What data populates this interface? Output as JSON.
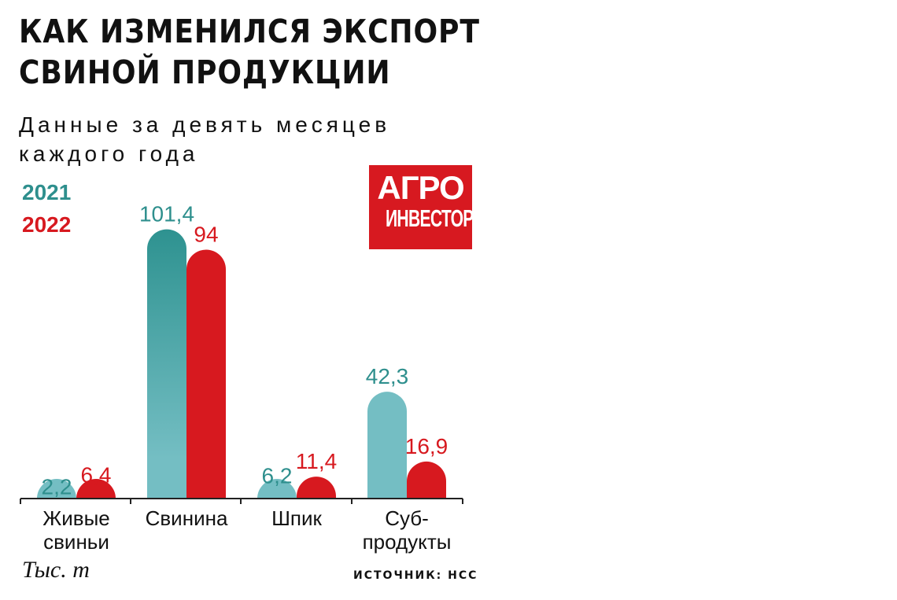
{
  "header": {
    "title_lines": [
      "КАК ИЗМЕНИЛСЯ ЭКСПОРТ",
      "СВИНОЙ ПРОДУКЦИИ"
    ],
    "subtitle_lines": [
      "Данные за девять месяцев",
      "каждого года"
    ]
  },
  "logo": {
    "line1": "АГРО",
    "line2": "ИНВЕСТОР",
    "color": "#d71920"
  },
  "unit_label": "Тыс. т",
  "source_label": "ИСТОЧНИК: НСС",
  "colors": {
    "series_2021": "#74bec3",
    "series_2021_dark": "#2e9290",
    "series_2021_text": "#2e8f8d",
    "series_2022": "#d7191f"
  },
  "chart_data": {
    "type": "bar",
    "categories": [
      [
        "Живые",
        "свиньи"
      ],
      [
        "Свинина"
      ],
      [
        "Шпик"
      ],
      [
        "Суб-",
        "продукты"
      ]
    ],
    "series": [
      {
        "name": "2021",
        "values": [
          2.2,
          101.4,
          6.2,
          42.3
        ],
        "labels": [
          "2,2",
          "101,4",
          "6,2",
          "42,3"
        ]
      },
      {
        "name": "2022",
        "values": [
          6.4,
          94,
          11.4,
          16.9
        ],
        "labels": [
          "6,4",
          "94",
          "11,4",
          "16,9"
        ]
      }
    ],
    "legend_position": "top-left",
    "grid": false
  }
}
